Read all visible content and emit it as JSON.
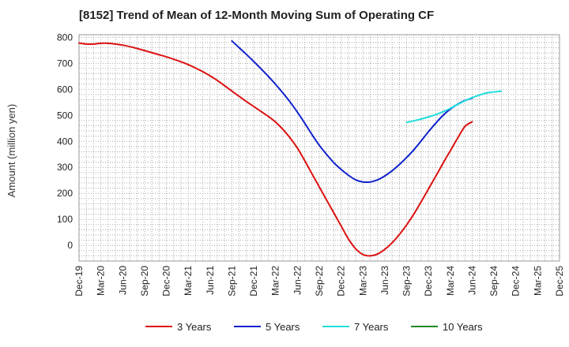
{
  "chart_data": {
    "type": "line",
    "title": "[8152]  Trend of Mean of 12-Month Moving Sum of Operating CF",
    "xlabel": "",
    "ylabel": "Amount (million yen)",
    "ylim": [
      -60,
      810
    ],
    "yticks": [
      0,
      100,
      200,
      300,
      400,
      500,
      600,
      700,
      800
    ],
    "grid": true,
    "legend_position": "bottom",
    "x_tick_labels": [
      "Dec-19",
      "Mar-20",
      "Jun-20",
      "Sep-20",
      "Dec-20",
      "Mar-21",
      "Jun-21",
      "Sep-21",
      "Dec-21",
      "Mar-22",
      "Jun-22",
      "Sep-22",
      "Dec-22",
      "Mar-23",
      "Jun-23",
      "Sep-23",
      "Dec-23",
      "Mar-24",
      "Jun-24",
      "Sep-24",
      "Dec-24",
      "Mar-25"
    ],
    "x_last_tick": "Dec-25",
    "series": [
      {
        "name": "3 Years",
        "color": "#dd1111",
        "start_index": 0,
        "values": [
          778,
          774,
          774,
          777,
          777,
          774,
          770,
          764,
          757,
          749,
          741,
          733,
          725,
          716,
          706,
          695,
          682,
          668,
          652,
          634,
          614,
          593,
          573,
          553,
          534,
          515,
          496,
          474,
          446,
          413,
          374,
          326,
          275,
          225,
          175,
          125,
          75,
          25,
          -13,
          -35,
          -40,
          -33,
          -15,
          10,
          42,
          79,
          121,
          168,
          217,
          266,
          316,
          364,
          412,
          457,
          475
        ]
      },
      {
        "name": "5 Years",
        "color": "#1122cc",
        "start_index": 21,
        "values": [
          786,
          760,
          734,
          707,
          679,
          650,
          619,
          586,
          551,
          512,
          470,
          426,
          385,
          350,
          318,
          292,
          270,
          252,
          244,
          244,
          252,
          267,
          287,
          311,
          338,
          368,
          402,
          437,
          470,
          500,
          524,
          543,
          557,
          566
        ]
      },
      {
        "name": "7 Years",
        "color": "#22dddd",
        "start_index": 45,
        "values": [
          473,
          479,
          486,
          494,
          503,
          514,
          527,
          542,
          556,
          568,
          578,
          586,
          590,
          593
        ]
      },
      {
        "name": "10 Years",
        "color": "#228822",
        "start_index": null,
        "values": []
      }
    ]
  }
}
